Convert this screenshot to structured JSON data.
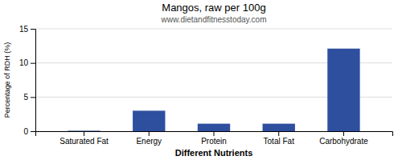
{
  "chart_data": {
    "type": "bar",
    "title": "Mangos, raw per 100g",
    "subtitle": "www.dietandfitnesstoday.com",
    "xlabel": "Different Nutrients",
    "ylabel": "Percentage of RDH (%)",
    "categories": [
      "Saturated Fat",
      "Energy",
      "Protein",
      "Total Fat",
      "Carbohydrate"
    ],
    "values": [
      0.07,
      3.0,
      1.1,
      1.1,
      12.1
    ],
    "color": "#2e4f9e",
    "ylim": [
      0,
      15
    ],
    "yticks": [
      0,
      5,
      10,
      15
    ],
    "grid": true
  }
}
